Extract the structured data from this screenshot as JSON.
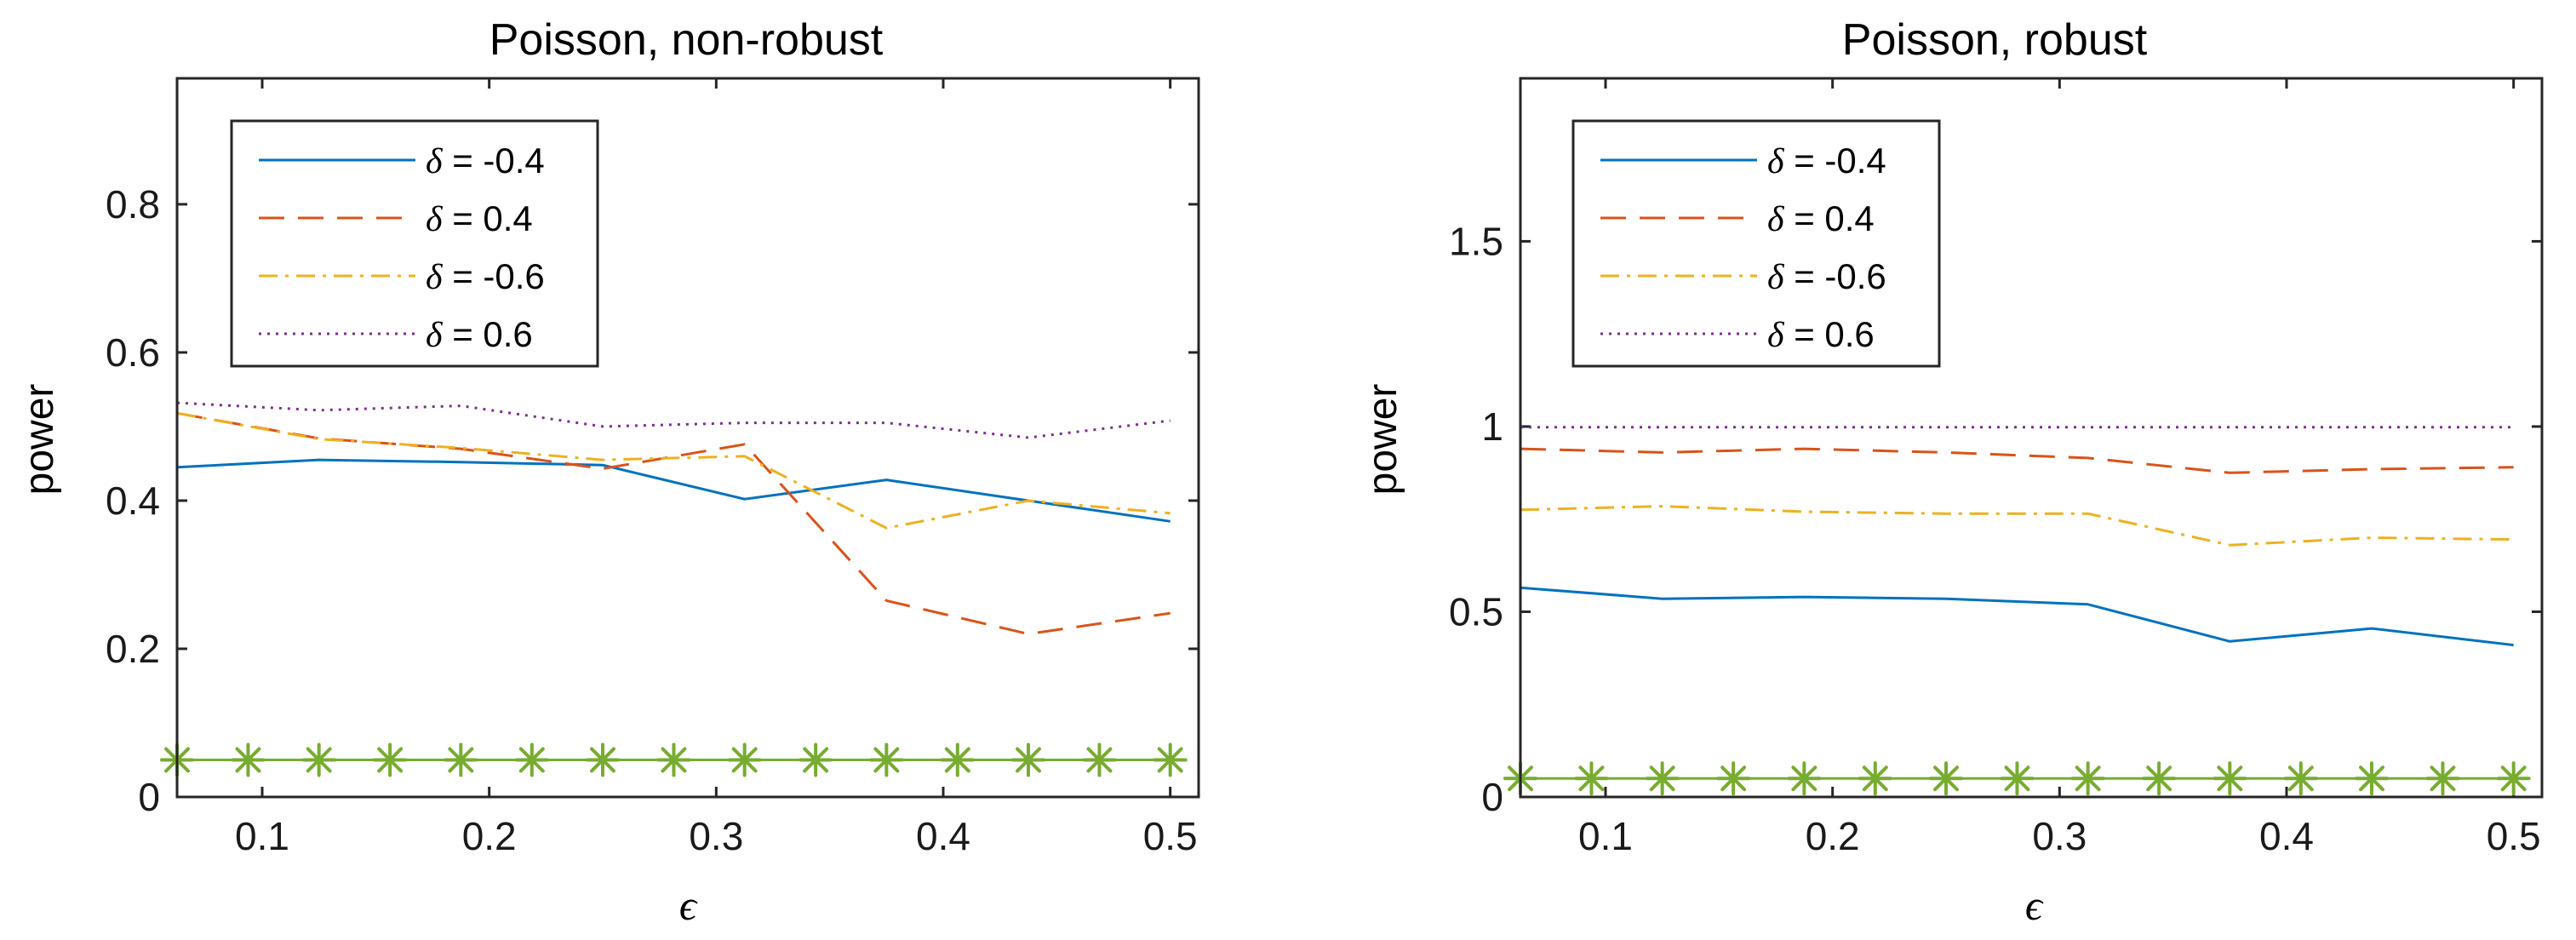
{
  "chart_data": [
    {
      "type": "line",
      "title": "Poisson, non-robust",
      "xlabel": "ϵ",
      "ylabel": "power",
      "xlim": [
        0.0625,
        0.5125
      ],
      "ylim": [
        0,
        0.97
      ],
      "xticks": [
        0.1,
        0.2,
        0.3,
        0.4,
        0.5
      ],
      "xtick_labels": [
        "0.1",
        "0.2",
        "0.3",
        "0.4",
        "0.5"
      ],
      "yticks": [
        0,
        0.2,
        0.4,
        0.6,
        0.8
      ],
      "ytick_labels": [
        "0",
        "0.2",
        "0.4",
        "0.6",
        "0.8"
      ],
      "legend_position": "top-left",
      "x": [
        0.0625,
        0.125,
        0.1875,
        0.25,
        0.3125,
        0.375,
        0.4375,
        0.5
      ],
      "series": [
        {
          "name": "δ = -0.4",
          "symbol": "δ",
          "rest": " = -0.4",
          "color": "#0072BD",
          "style": "solid",
          "values": [
            0.445,
            0.455,
            0.452,
            0.448,
            0.402,
            0.428,
            0.4,
            0.372
          ]
        },
        {
          "name": "δ = 0.4",
          "symbol": "δ",
          "rest": " = 0.4",
          "color": "#D95319",
          "style": "dashed",
          "values": [
            0.518,
            0.484,
            0.47,
            0.443,
            0.476,
            0.265,
            0.22,
            0.248
          ]
        },
        {
          "name": "δ = -0.6",
          "symbol": "δ",
          "rest": " = -0.6",
          "color": "#EDB120",
          "style": "dashdot",
          "values": [
            0.518,
            0.483,
            0.471,
            0.455,
            0.46,
            0.363,
            0.4,
            0.383
          ]
        },
        {
          "name": "δ = 0.6",
          "symbol": "δ",
          "rest": " = 0.6",
          "color": "#7E2F8E",
          "style": "dotted",
          "values": [
            0.532,
            0.522,
            0.528,
            0.5,
            0.505,
            0.505,
            0.485,
            0.508
          ]
        }
      ],
      "reference": {
        "color": "#77AC30",
        "marker": "asterisk",
        "value": 0.05,
        "marker_x": [
          0.0625,
          0.0938,
          0.125,
          0.1563,
          0.1875,
          0.2188,
          0.25,
          0.2813,
          0.3125,
          0.3438,
          0.375,
          0.4063,
          0.4375,
          0.4688,
          0.5
        ]
      }
    },
    {
      "type": "line",
      "title": "Poisson, robust",
      "xlabel": "ϵ",
      "ylabel": "power",
      "xlim": [
        0.0625,
        0.5125
      ],
      "ylim": [
        0,
        1.94
      ],
      "xticks": [
        0.1,
        0.2,
        0.3,
        0.4,
        0.5
      ],
      "xtick_labels": [
        "0.1",
        "0.2",
        "0.3",
        "0.4",
        "0.5"
      ],
      "yticks": [
        0,
        0.5,
        1,
        1.5
      ],
      "ytick_labels": [
        "0",
        "0.5",
        "1",
        "1.5"
      ],
      "legend_position": "top-left",
      "x": [
        0.0625,
        0.125,
        0.1875,
        0.25,
        0.3125,
        0.375,
        0.4375,
        0.5
      ],
      "series": [
        {
          "name": "δ = -0.4",
          "symbol": "δ",
          "rest": " = -0.4",
          "color": "#0072BD",
          "style": "solid",
          "values": [
            0.565,
            0.535,
            0.54,
            0.535,
            0.52,
            0.42,
            0.455,
            0.41
          ]
        },
        {
          "name": "δ = 0.4",
          "symbol": "δ",
          "rest": " = 0.4",
          "color": "#D95319",
          "style": "dashed",
          "values": [
            0.94,
            0.93,
            0.94,
            0.93,
            0.915,
            0.875,
            0.885,
            0.89
          ]
        },
        {
          "name": "δ = -0.6",
          "symbol": "δ",
          "rest": " = -0.6",
          "color": "#EDB120",
          "style": "dashdot",
          "values": [
            0.775,
            0.785,
            0.77,
            0.765,
            0.765,
            0.68,
            0.7,
            0.695
          ]
        },
        {
          "name": "δ = 0.6",
          "symbol": "δ",
          "rest": " = 0.6",
          "color": "#7E2F8E",
          "style": "dotted",
          "values": [
            0.998,
            0.998,
            0.998,
            0.998,
            0.998,
            0.998,
            0.998,
            0.998
          ]
        }
      ],
      "reference": {
        "color": "#77AC30",
        "marker": "asterisk",
        "value": 0.05,
        "marker_x": [
          0.0625,
          0.0938,
          0.125,
          0.1563,
          0.1875,
          0.2188,
          0.25,
          0.2813,
          0.3125,
          0.3438,
          0.375,
          0.4063,
          0.4375,
          0.4688,
          0.5
        ]
      }
    }
  ]
}
